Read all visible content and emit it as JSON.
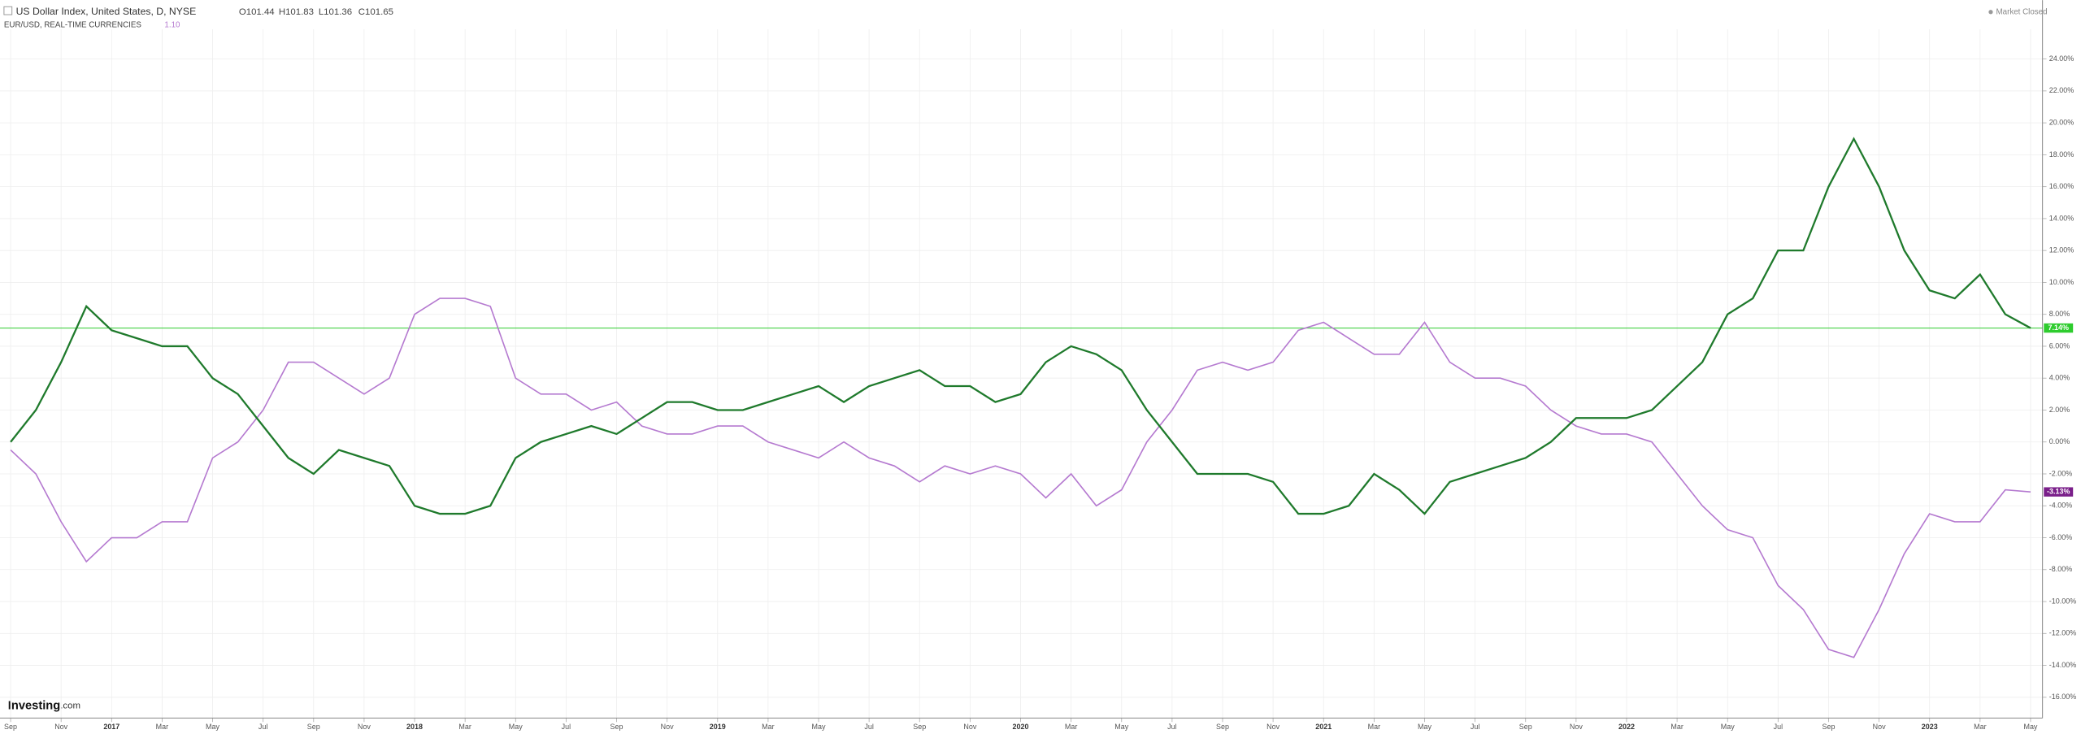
{
  "chart_data": {
    "type": "line",
    "status": "Market Closed",
    "brand": "Investing",
    "brand_suffix": ".com",
    "categories": [
      "Sep",
      null,
      "Nov",
      null,
      "2017",
      null,
      "Mar",
      null,
      "May",
      null,
      "Jul",
      null,
      "Sep",
      null,
      "Nov",
      null,
      "2018",
      null,
      "Mar",
      null,
      "May",
      null,
      "Jul",
      null,
      "Sep",
      null,
      "Nov",
      null,
      "2019",
      null,
      "Mar",
      null,
      "May",
      null,
      "Jul",
      null,
      "Sep",
      null,
      "Nov",
      null,
      "2020",
      null,
      "Mar",
      null,
      "May",
      null,
      "Jul",
      null,
      "Sep",
      null,
      "Nov",
      null,
      "2021",
      null,
      "Mar",
      null,
      "May",
      null,
      "Jul",
      null,
      "Sep",
      null,
      "Nov",
      null,
      "2022",
      null,
      "Mar",
      null,
      "May",
      null,
      "Jul",
      null,
      "Sep",
      null,
      "Nov",
      null,
      "2023",
      null,
      "Mar",
      null,
      "May"
    ],
    "series": [
      {
        "name": "US Dollar Index, United States, D, NYSE",
        "color": "#1f7a2c",
        "quote": [
          "O101.44",
          "H101.83",
          "L101.36",
          "C101.65"
        ],
        "last": {
          "value": 7.14,
          "label": "7.14%"
        },
        "last_color": "#2ecc2e",
        "values": [
          0,
          2,
          5,
          8.5,
          7,
          6.5,
          6,
          6,
          4,
          3,
          1,
          -1,
          -2,
          -0.5,
          -1,
          -1.5,
          -4,
          -4.5,
          -4.5,
          -4,
          -1,
          0,
          0.5,
          1,
          0.5,
          1.5,
          2.5,
          2.5,
          2,
          2,
          2.5,
          3,
          3.5,
          2.5,
          3.5,
          4,
          4.5,
          3.5,
          3.5,
          2.5,
          3,
          5,
          6,
          5.5,
          4.5,
          2,
          0,
          -2,
          -2,
          -2,
          -2.5,
          -4.5,
          -4.5,
          -4,
          -2,
          -3,
          -4.5,
          -2.5,
          -2,
          -1.5,
          -1,
          0,
          1.5,
          1.5,
          1.5,
          2,
          3.5,
          5,
          8,
          9,
          12,
          12,
          16,
          19,
          16,
          12,
          9.5,
          9,
          10.5,
          8,
          7.14
        ]
      },
      {
        "name": "EUR/USD, REAL-TIME CURRENCIES",
        "color": "#b57ad0",
        "quote": [
          "1.10"
        ],
        "last": {
          "value": -3.13,
          "label": "-3.13%"
        },
        "last_color": "#7a1f8a",
        "values": [
          -0.5,
          -2,
          -5,
          -7.5,
          -6,
          -6,
          -5,
          -5,
          -1,
          0,
          2,
          5,
          5,
          4,
          3,
          4,
          8,
          9,
          9,
          8.5,
          4,
          3,
          3,
          2,
          2.5,
          1,
          0.5,
          0.5,
          1,
          1,
          0,
          -0.5,
          -1,
          0,
          -1,
          -1.5,
          -2.5,
          -1.5,
          -2,
          -1.5,
          -2,
          -3.5,
          -2,
          -4,
          -3,
          0,
          2,
          4.5,
          5,
          4.5,
          5,
          7,
          7.5,
          6.5,
          5.5,
          5.5,
          7.5,
          5,
          4,
          4,
          3.5,
          2,
          1,
          0.5,
          0.5,
          0,
          -2,
          -4,
          -5.5,
          -6,
          -9,
          -10.5,
          -13,
          -13.5,
          -10.5,
          -7,
          -4.5,
          -5,
          -5,
          -3,
          -3.13
        ]
      }
    ],
    "ylim": [
      -17.3,
      25.2
    ],
    "yticks": [
      {
        "value": 24,
        "label": "24.00%"
      },
      {
        "value": 22,
        "label": "22.00%"
      },
      {
        "value": 20,
        "label": "20.00%"
      },
      {
        "value": 18,
        "label": "18.00%"
      },
      {
        "value": 16,
        "label": "16.00%"
      },
      {
        "value": 14,
        "label": "14.00%"
      },
      {
        "value": 12,
        "label": "12.00%"
      },
      {
        "value": 10,
        "label": "10.00%"
      },
      {
        "value": 8,
        "label": "8.00%"
      },
      {
        "value": 6,
        "label": "6.00%"
      },
      {
        "value": 4,
        "label": "4.00%"
      },
      {
        "value": 2,
        "label": "2.00%"
      },
      {
        "value": 0,
        "label": "0.00%"
      },
      {
        "value": -2,
        "label": "-2.00%"
      },
      {
        "value": -4,
        "label": "-4.00%"
      },
      {
        "value": -6,
        "label": "-6.00%"
      },
      {
        "value": -8,
        "label": "-8.00%"
      },
      {
        "value": -10,
        "label": "-10.00%"
      },
      {
        "value": -12,
        "label": "-12.00%"
      },
      {
        "value": -14,
        "label": "-14.00%"
      },
      {
        "value": -16,
        "label": "-16.00%"
      }
    ],
    "grid": true
  }
}
